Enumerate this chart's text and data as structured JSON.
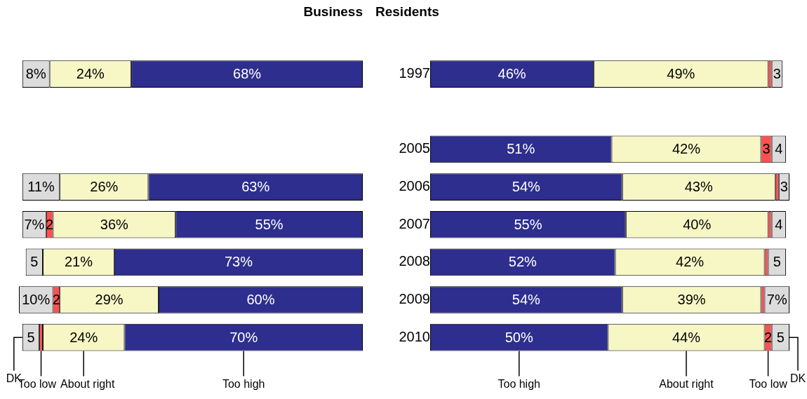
{
  "chart_data": [
    {
      "type": "bar",
      "title": "Business",
      "orientation": "horizontal",
      "stacked": true,
      "legend": false,
      "grid": false,
      "tick_labels": false,
      "xlim": [
        101,
        0
      ],
      "categories": [
        "1997",
        null,
        "2005",
        "2006",
        "2007",
        "2008",
        "2009",
        "2010"
      ],
      "series": [
        {
          "name": "Too high",
          "color": "#2e2e8f",
          "values": [
            68,
            null,
            null,
            63,
            55,
            73,
            60,
            70
          ],
          "value_labels": [
            "68%",
            null,
            null,
            "63%",
            "55%",
            "73%",
            "60%",
            "70%"
          ]
        },
        {
          "name": "About right",
          "color": "#f7f7c6",
          "values": [
            24,
            null,
            null,
            26,
            36,
            21,
            29,
            24
          ],
          "value_labels": [
            "24%",
            null,
            null,
            "26%",
            "36%",
            "21%",
            "29%",
            "24%"
          ]
        },
        {
          "name": "Too low",
          "color": "#ff5050",
          "values": [
            null,
            null,
            null,
            null,
            2,
            null,
            2,
            1
          ],
          "value_labels": [
            null,
            null,
            null,
            null,
            "2",
            null,
            "2",
            null
          ]
        },
        {
          "name": "DK",
          "color": "#dcdcdc",
          "values": [
            8,
            null,
            null,
            11,
            7,
            5,
            10,
            5
          ],
          "value_labels": [
            "8%",
            null,
            null,
            "11%",
            "7%",
            "5",
            "10%",
            "5"
          ]
        }
      ]
    },
    {
      "type": "bar",
      "title": "Residents",
      "orientation": "horizontal",
      "stacked": true,
      "legend": false,
      "grid": false,
      "tick_labels": "y",
      "xlim": [
        0,
        101
      ],
      "categories": [
        "1997",
        null,
        "2005",
        "2006",
        "2007",
        "2008",
        "2009",
        "2010"
      ],
      "series": [
        {
          "name": "Too high",
          "color": "#2e2e8f",
          "values": [
            46,
            null,
            51,
            54,
            55,
            52,
            54,
            50
          ],
          "value_labels": [
            "46%",
            null,
            "51%",
            "54%",
            "55%",
            "52%",
            "54%",
            "50%"
          ]
        },
        {
          "name": "About right",
          "color": "#f7f7c6",
          "values": [
            49,
            null,
            42,
            43,
            40,
            42,
            39,
            44
          ],
          "value_labels": [
            "49%",
            null,
            "42%",
            "43%",
            "40%",
            "42%",
            "39%",
            "44%"
          ]
        },
        {
          "name": "Too low",
          "color": "#ff5050",
          "values": [
            1,
            null,
            3,
            1,
            1,
            1,
            1,
            2
          ],
          "value_labels": [
            null,
            null,
            "3",
            null,
            null,
            null,
            null,
            "2"
          ]
        },
        {
          "name": "DK",
          "color": "#dcdcdc",
          "values": [
            3,
            null,
            4,
            3,
            4,
            5,
            7,
            5
          ],
          "value_labels": [
            "3",
            null,
            "4",
            "3",
            "4",
            "5",
            "7%",
            "5"
          ]
        }
      ]
    }
  ]
}
